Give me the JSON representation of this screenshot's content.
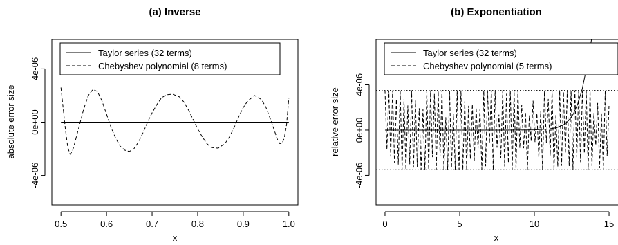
{
  "chart_data": [
    {
      "type": "line",
      "title": "(a) Inverse",
      "xlabel": "x",
      "ylabel": "absolute error size",
      "xlim": [
        0.48,
        1.02
      ],
      "ylim": [
        -6.2e-06,
        6.2e-06
      ],
      "xticks": [
        0.5,
        0.6,
        0.7,
        0.8,
        0.9,
        1.0
      ],
      "xtick_labels": [
        "0.5",
        "0.6",
        "0.7",
        "0.8",
        "0.9",
        "1.0"
      ],
      "yticks": [
        -4e-06,
        0,
        4e-06
      ],
      "ytick_labels": [
        "-4e-06",
        "0e+00",
        "4e-06"
      ],
      "grid": false,
      "legend_position": "top-left",
      "series": [
        {
          "name": "Taylor series (32 terms)",
          "style": "solid",
          "x": [
            0.5,
            1.0
          ],
          "y": [
            0,
            0
          ]
        },
        {
          "name": "Chebyshev polynomial (8 terms)",
          "style": "dashed",
          "x": [
            0.5,
            0.505,
            0.51,
            0.515,
            0.52,
            0.525,
            0.53,
            0.54,
            0.55,
            0.56,
            0.57,
            0.58,
            0.59,
            0.6,
            0.61,
            0.62,
            0.63,
            0.64,
            0.65,
            0.66,
            0.67,
            0.68,
            0.69,
            0.7,
            0.71,
            0.72,
            0.73,
            0.745,
            0.76,
            0.77,
            0.78,
            0.79,
            0.8,
            0.81,
            0.82,
            0.83,
            0.845,
            0.86,
            0.87,
            0.88,
            0.89,
            0.9,
            0.91,
            0.925,
            0.94,
            0.95,
            0.96,
            0.97,
            0.975,
            0.98,
            0.985,
            0.99,
            0.995,
            1.0
          ],
          "y": [
            2.6e-06,
            1e-06,
            -6e-07,
            -1.9e-06,
            -2.4e-06,
            -2.2e-06,
            -1.6e-06,
            -3e-07,
            1e-06,
            2e-06,
            2.45e-06,
            2.3e-06,
            1.6e-06,
            6e-07,
            -4e-07,
            -1.2e-06,
            -1.8e-06,
            -2.1e-06,
            -2.2e-06,
            -2e-06,
            -1.5e-06,
            -8e-07,
            0.0,
            7e-07,
            1.3e-06,
            1.8e-06,
            2.05e-06,
            2.1e-06,
            1.9e-06,
            1.5e-06,
            9e-07,
            2e-07,
            -5e-07,
            -1.1e-06,
            -1.6e-06,
            -1.9e-06,
            -1.95e-06,
            -1.6e-06,
            -1.1e-06,
            -4e-07,
            4e-07,
            1.1e-06,
            1.6e-06,
            2e-06,
            1.7e-06,
            1.1e-06,
            2e-07,
            -8e-07,
            -1.3e-06,
            -1.6e-06,
            -1.6e-06,
            -1.2e-06,
            -2e-07,
            1.8e-06
          ]
        }
      ]
    },
    {
      "type": "line",
      "title": "(b) Exponentiation",
      "xlabel": "x",
      "ylabel": "relative error size",
      "xlim": [
        -0.6,
        15.6
      ],
      "ylim": [
        -6.6e-06,
        8e-06
      ],
      "xticks": [
        0,
        5,
        10,
        15
      ],
      "xtick_labels": [
        "0",
        "5",
        "10",
        "15"
      ],
      "yticks": [
        -4e-06,
        0,
        4e-06
      ],
      "ytick_labels": [
        "-4e-06",
        "0e+00",
        "4e-06"
      ],
      "grid": false,
      "legend_position": "top-left",
      "reference_lines": [
        3.5e-06,
        -3.5e-06
      ],
      "series": [
        {
          "name": "Taylor series (32 terms)",
          "style": "solid",
          "x": [
            0,
            2,
            4,
            6,
            8,
            10,
            11,
            11.5,
            12,
            12.3,
            12.6,
            12.9,
            13.2,
            13.45,
            13.7,
            13.9
          ],
          "y": [
            0,
            0,
            0,
            0,
            0,
            2e-08,
            1e-07,
            2.2e-07,
            5e-07,
            8.5e-07,
            1.4e-06,
            2.3e-06,
            3.6e-06,
            5.2e-06,
            7e-06,
            8.6e-06
          ]
        },
        {
          "name": "Chebyshev polynomial (5 terms)",
          "style": "dashed",
          "x_start": 0,
          "x_end": 15,
          "oscillation_count": 118,
          "amplitude_max": 3.5e-06,
          "amplitude_min": 1e-06
        }
      ]
    }
  ]
}
